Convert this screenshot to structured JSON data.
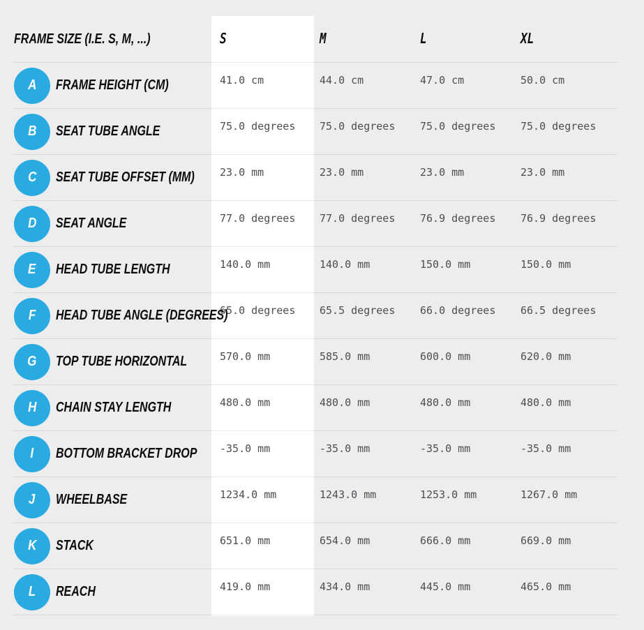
{
  "colors": {
    "accent": "#29abe2",
    "page_background": "#ededed",
    "highlight_column_background": "#ffffff",
    "label_text": "#0c0c0c",
    "value_text": "#4b4e52",
    "divider": "#dcdcdc"
  },
  "table": {
    "header": {
      "label": "FRAME SIZE (I.E. S, M, ...)",
      "columns": [
        "S",
        "M",
        "L",
        "XL"
      ],
      "highlighted_column": "S"
    },
    "rows": [
      {
        "letter": "A",
        "label": "FRAME HEIGHT (CM)",
        "values": [
          "41.0 cm",
          "44.0 cm",
          "47.0 cm",
          "50.0 cm"
        ]
      },
      {
        "letter": "B",
        "label": "SEAT TUBE ANGLE",
        "values": [
          "75.0 degrees",
          "75.0 degrees",
          "75.0 degrees",
          "75.0 degrees"
        ]
      },
      {
        "letter": "C",
        "label": "SEAT TUBE OFFSET (MM)",
        "values": [
          "23.0 mm",
          "23.0 mm",
          "23.0 mm",
          "23.0 mm"
        ]
      },
      {
        "letter": "D",
        "label": "SEAT ANGLE",
        "values": [
          "77.0 degrees",
          "77.0 degrees",
          "76.9 degrees",
          "76.9 degrees"
        ]
      },
      {
        "letter": "E",
        "label": "HEAD TUBE LENGTH",
        "values": [
          "140.0 mm",
          "140.0 mm",
          "150.0 mm",
          "150.0 mm"
        ]
      },
      {
        "letter": "F",
        "label": "HEAD TUBE ANGLE (DEGREES)",
        "values": [
          "65.0 degrees",
          "65.5 degrees",
          "66.0 degrees",
          "66.5 degrees"
        ]
      },
      {
        "letter": "G",
        "label": "TOP TUBE HORIZONTAL",
        "values": [
          "570.0 mm",
          "585.0 mm",
          "600.0 mm",
          "620.0 mm"
        ]
      },
      {
        "letter": "H",
        "label": "CHAIN STAY LENGTH",
        "values": [
          "480.0 mm",
          "480.0 mm",
          "480.0 mm",
          "480.0 mm"
        ]
      },
      {
        "letter": "I",
        "label": "BOTTOM BRACKET DROP",
        "values": [
          "-35.0 mm",
          "-35.0 mm",
          "-35.0 mm",
          "-35.0 mm"
        ]
      },
      {
        "letter": "J",
        "label": "WHEELBASE",
        "values": [
          "1234.0 mm",
          "1243.0 mm",
          "1253.0 mm",
          "1267.0 mm"
        ]
      },
      {
        "letter": "K",
        "label": "STACK",
        "values": [
          "651.0 mm",
          "654.0 mm",
          "666.0 mm",
          "669.0 mm"
        ]
      },
      {
        "letter": "L",
        "label": "REACH",
        "values": [
          "419.0 mm",
          "434.0 mm",
          "445.0 mm",
          "465.0 mm"
        ]
      }
    ]
  }
}
